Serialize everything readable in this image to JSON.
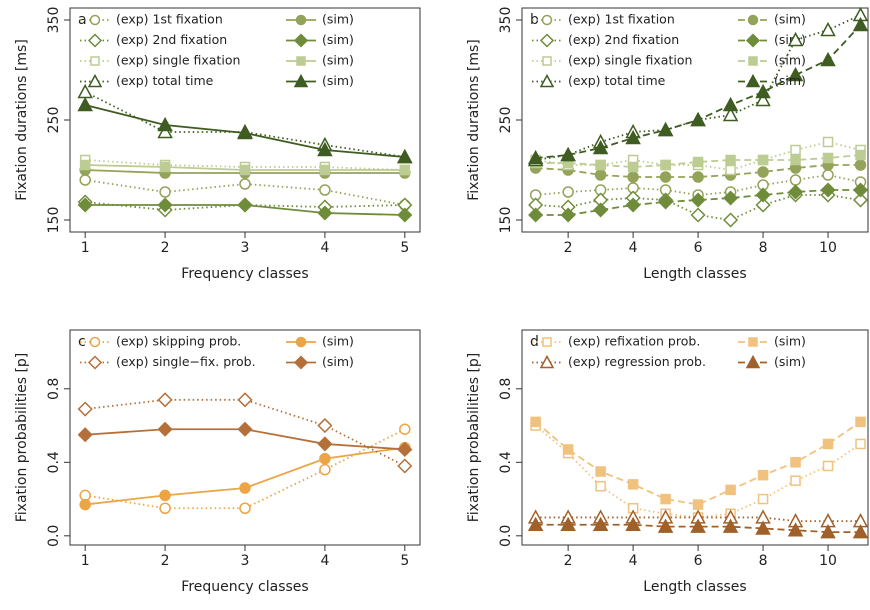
{
  "chart_data": [
    {
      "type": "line",
      "panel_label": "a",
      "xlabel": "Frequency classes",
      "ylabel": "Fixation durations [ms]",
      "x": [
        1,
        2,
        3,
        4,
        5
      ],
      "xlim": [
        0.81,
        5.19
      ],
      "xticks": [
        1,
        2,
        3,
        4,
        5
      ],
      "ylim": [
        138,
        362
      ],
      "yticks": [
        150,
        250,
        350
      ],
      "series": [
        {
          "name": "(exp) 1st fixation",
          "color": "#93a35a",
          "marker": "circle",
          "filled": false,
          "linestyle": "dotted",
          "values": [
            190,
            178,
            186,
            180,
            165
          ]
        },
        {
          "name": "(sim)",
          "color": "#93a35a",
          "marker": "circle",
          "filled": true,
          "linestyle": "solid",
          "values": [
            200,
            197,
            197,
            197,
            197
          ]
        },
        {
          "name": "(exp) 2nd fixation",
          "color": "#6e8c3a",
          "marker": "diamond",
          "filled": false,
          "linestyle": "dotted",
          "values": [
            168,
            160,
            165,
            163,
            165
          ]
        },
        {
          "name": "(sim)",
          "color": "#6e8c3a",
          "marker": "diamond",
          "filled": true,
          "linestyle": "solid",
          "values": [
            165,
            165,
            165,
            157,
            155
          ]
        },
        {
          "name": "(exp) single fixation",
          "color": "#bccc92",
          "marker": "square",
          "filled": false,
          "linestyle": "dotted",
          "values": [
            210,
            205,
            203,
            203,
            200
          ]
        },
        {
          "name": "(sim)",
          "color": "#bccc92",
          "marker": "square",
          "filled": true,
          "linestyle": "solid",
          "values": [
            205,
            203,
            200,
            200,
            200
          ]
        },
        {
          "name": "(exp) total time",
          "color": "#3f5c22",
          "marker": "triangle",
          "filled": false,
          "linestyle": "dotted",
          "values": [
            278,
            238,
            238,
            225,
            213
          ]
        },
        {
          "name": "(sim)",
          "color": "#3f5c22",
          "marker": "triangle",
          "filled": true,
          "linestyle": "solid",
          "values": [
            265,
            245,
            237,
            220,
            213
          ]
        }
      ]
    },
    {
      "type": "line",
      "panel_label": "b",
      "xlabel": "Length classes",
      "ylabel": "Fixation durations [ms]",
      "x": [
        1,
        2,
        3,
        4,
        5,
        6,
        7,
        8,
        9,
        10,
        11
      ],
      "xlim": [
        0.58,
        11.23
      ],
      "xticks": [
        2,
        4,
        6,
        8,
        10
      ],
      "ylim": [
        138,
        362
      ],
      "yticks": [
        150,
        250,
        350
      ],
      "series": [
        {
          "name": "(exp) 1st fixation",
          "color": "#93a35a",
          "marker": "circle",
          "filled": false,
          "linestyle": "dotted",
          "values": [
            175,
            178,
            180,
            182,
            180,
            175,
            178,
            185,
            190,
            195,
            188
          ]
        },
        {
          "name": "(sim)",
          "color": "#93a35a",
          "marker": "circle",
          "filled": true,
          "linestyle": "dashed",
          "values": [
            202,
            200,
            195,
            193,
            193,
            193,
            195,
            198,
            202,
            205,
            205
          ]
        },
        {
          "name": "(exp) 2nd fixation",
          "color": "#6e8c3a",
          "marker": "diamond",
          "filled": false,
          "linestyle": "dotted",
          "values": [
            165,
            163,
            170,
            172,
            170,
            155,
            150,
            165,
            175,
            175,
            170
          ]
        },
        {
          "name": "(sim)",
          "color": "#6e8c3a",
          "marker": "diamond",
          "filled": true,
          "linestyle": "dashed",
          "values": [
            155,
            155,
            160,
            165,
            168,
            170,
            172,
            175,
            178,
            180,
            180
          ]
        },
        {
          "name": "(exp) single fixation",
          "color": "#bccc92",
          "marker": "square",
          "filled": false,
          "linestyle": "dotted",
          "values": [
            210,
            205,
            205,
            210,
            205,
            205,
            200,
            210,
            220,
            228,
            220
          ]
        },
        {
          "name": "(sim)",
          "color": "#bccc92",
          "marker": "square",
          "filled": true,
          "linestyle": "dashed",
          "values": [
            207,
            207,
            205,
            203,
            205,
            208,
            210,
            210,
            210,
            212,
            215
          ]
        },
        {
          "name": "(exp) total time",
          "color": "#3f5c22",
          "marker": "triangle",
          "filled": false,
          "linestyle": "dotted",
          "values": [
            210,
            215,
            228,
            238,
            240,
            250,
            255,
            270,
            330,
            340,
            355
          ]
        },
        {
          "name": "(sim)",
          "color": "#3f5c22",
          "marker": "triangle",
          "filled": true,
          "linestyle": "dashed",
          "values": [
            212,
            215,
            222,
            232,
            240,
            250,
            265,
            278,
            295,
            310,
            345
          ]
        }
      ]
    },
    {
      "type": "line",
      "panel_label": "c",
      "xlabel": "Frequency classes",
      "ylabel": "Fixation probabilities [p]",
      "x": [
        1,
        2,
        3,
        4,
        5
      ],
      "xlim": [
        0.81,
        5.19
      ],
      "xticks": [
        1,
        2,
        3,
        4,
        5
      ],
      "ylim": [
        -0.05,
        1.12
      ],
      "yticks": [
        {
          "value": 0,
          "label": "0.0"
        },
        0.4,
        0.8
      ],
      "series": [
        {
          "name": "(exp) skipping prob.",
          "color": "#eba545",
          "marker": "circle",
          "filled": false,
          "linestyle": "dotted",
          "values": [
            0.22,
            0.15,
            0.15,
            0.36,
            0.58
          ]
        },
        {
          "name": "(sim)",
          "color": "#eba545",
          "marker": "circle",
          "filled": true,
          "linestyle": "solid",
          "values": [
            0.17,
            0.22,
            0.26,
            0.42,
            0.48
          ]
        },
        {
          "name": "(exp) single−fix. prob.",
          "color": "#b5703a",
          "marker": "diamond",
          "filled": false,
          "linestyle": "dotted",
          "values": [
            0.69,
            0.74,
            0.74,
            0.6,
            0.38
          ]
        },
        {
          "name": "(sim)",
          "color": "#b5703a",
          "marker": "diamond",
          "filled": true,
          "linestyle": "solid",
          "values": [
            0.55,
            0.58,
            0.58,
            0.5,
            0.47
          ]
        }
      ]
    },
    {
      "type": "line",
      "panel_label": "d",
      "xlabel": "Length classes",
      "ylabel": "Fixation probabilities [p]",
      "x": [
        1,
        2,
        3,
        4,
        5,
        6,
        7,
        8,
        9,
        10,
        11
      ],
      "xlim": [
        0.58,
        11.23
      ],
      "xticks": [
        2,
        4,
        6,
        8,
        10
      ],
      "ylim": [
        -0.05,
        1.12
      ],
      "yticks": [
        {
          "value": 0,
          "label": "0.0"
        },
        0.4,
        0.8
      ],
      "series": [
        {
          "name": "(exp) refixation prob.",
          "color": "#f0c27e",
          "marker": "square",
          "filled": false,
          "linestyle": "dotted",
          "values": [
            0.6,
            0.45,
            0.27,
            0.15,
            0.12,
            0.1,
            0.12,
            0.2,
            0.3,
            0.38,
            0.5
          ]
        },
        {
          "name": "(sim)",
          "color": "#f0c27e",
          "marker": "square",
          "filled": true,
          "linestyle": "dashed",
          "values": [
            0.62,
            0.47,
            0.35,
            0.28,
            0.2,
            0.17,
            0.25,
            0.33,
            0.4,
            0.5,
            0.62
          ]
        },
        {
          "name": "(exp) regression prob.",
          "color": "#a0602a",
          "marker": "triangle",
          "filled": false,
          "linestyle": "dotted",
          "values": [
            0.1,
            0.1,
            0.1,
            0.1,
            0.1,
            0.1,
            0.1,
            0.1,
            0.08,
            0.08,
            0.08
          ]
        },
        {
          "name": "(sim)",
          "color": "#a0602a",
          "marker": "triangle",
          "filled": true,
          "linestyle": "dashed",
          "values": [
            0.06,
            0.06,
            0.06,
            0.06,
            0.05,
            0.05,
            0.05,
            0.04,
            0.03,
            0.02,
            0.02
          ]
        }
      ]
    }
  ]
}
